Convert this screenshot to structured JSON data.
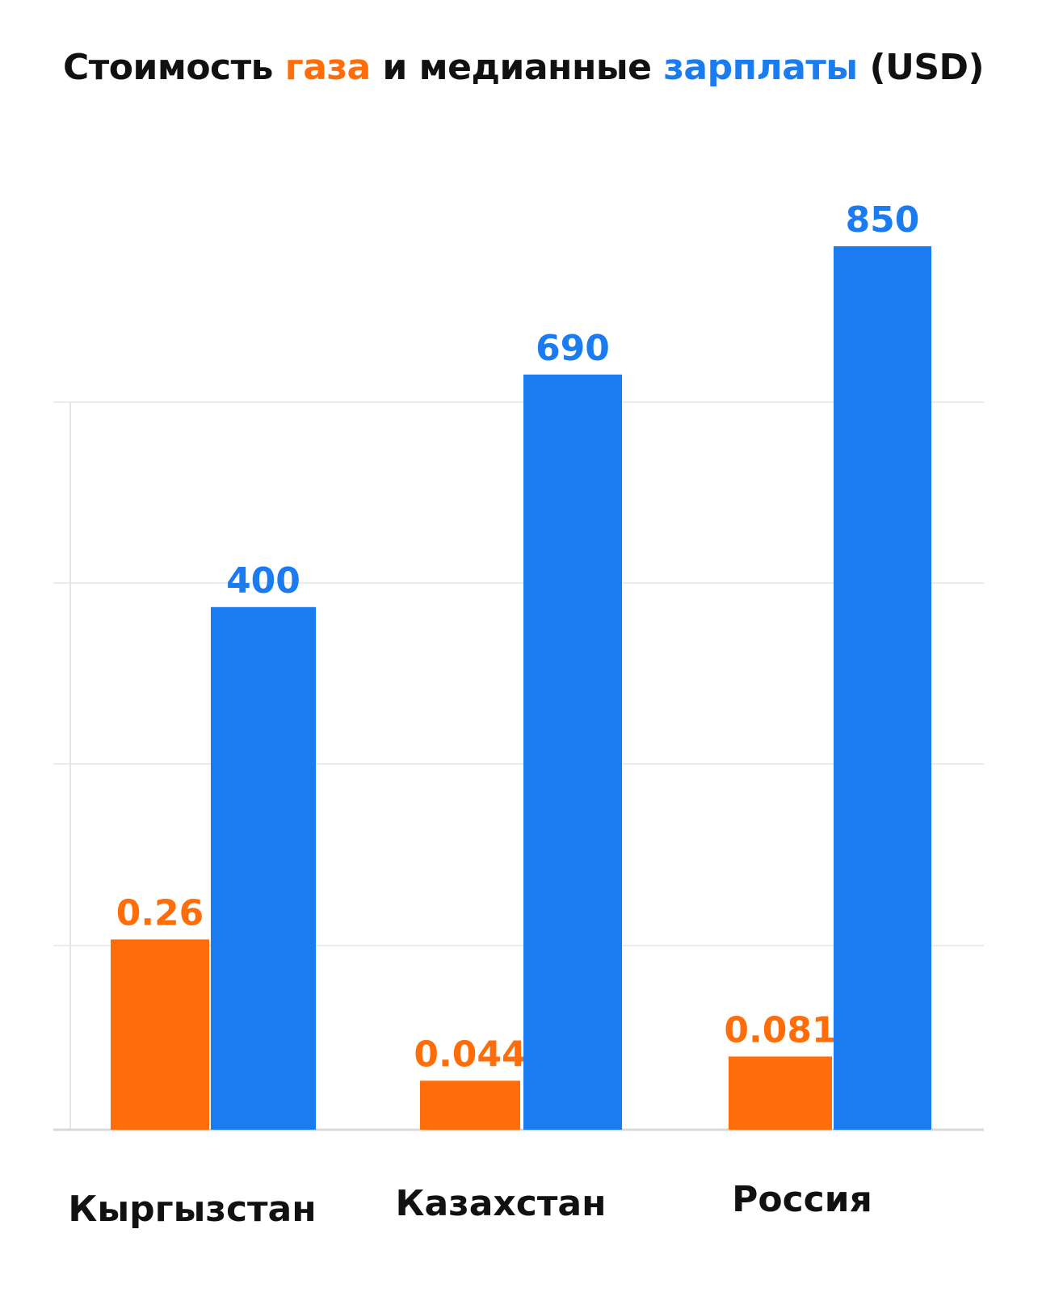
{
  "chart_data": {
    "type": "bar",
    "title_parts": [
      {
        "text": "Стоимость ",
        "color": "#111111"
      },
      {
        "text": "газа",
        "color": "#ff6d0a"
      },
      {
        "text": " и медианные ",
        "color": "#111111"
      },
      {
        "text": "зарплаты",
        "color": "#1a7cf0"
      },
      {
        "text": " (USD)",
        "color": "#111111"
      }
    ],
    "categories": [
      "Кыргызстан",
      "Казахстан",
      "Россия"
    ],
    "series": [
      {
        "key": "gas",
        "color": "#ff6d0a",
        "values": [
          0.26,
          0.044,
          0.081
        ],
        "labels": [
          "0.26",
          "0.044",
          "0.081"
        ]
      },
      {
        "key": "salary",
        "color": "#1a7cf0",
        "values": [
          400,
          690,
          850
        ],
        "labels": [
          "400",
          "690",
          "850"
        ]
      }
    ],
    "grid": true,
    "y_axis_labels": false
  }
}
